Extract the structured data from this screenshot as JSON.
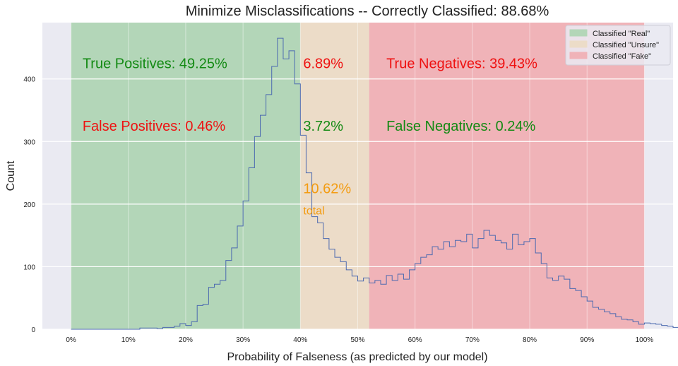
{
  "chart_data": {
    "type": "histogram",
    "title": "Minimize Misclassifications -- Correctly Classified: 88.68%",
    "xlabel": "Probability of Falseness (as predicted by our model)",
    "ylabel": "Count",
    "xlim": [
      -0.05,
      1.05
    ],
    "ylim": [
      0,
      490
    ],
    "x_ticks": [
      0,
      0.1,
      0.2,
      0.3,
      0.4,
      0.5,
      0.6,
      0.7,
      0.8,
      0.9,
      1.0
    ],
    "x_tick_labels": [
      "0%",
      "10%",
      "20%",
      "30%",
      "40%",
      "50%",
      "60%",
      "70%",
      "80%",
      "90%",
      "100%"
    ],
    "y_ticks": [
      0,
      100,
      200,
      300,
      400
    ],
    "y_tick_labels": [
      "0",
      "100",
      "200",
      "300",
      "400"
    ],
    "grid": true,
    "legend_position": "top-right",
    "regions": [
      {
        "label": "Classified \"Real\"",
        "start": 0.0,
        "end": 0.4,
        "color": "#b3d6b8"
      },
      {
        "label": "Classified \"Unsure\"",
        "start": 0.4,
        "end": 0.52,
        "color": "#ecdcc8"
      },
      {
        "label": "Classified \"Fake\"",
        "start": 0.52,
        "end": 1.0,
        "color": "#f0b3b8"
      }
    ],
    "annotations": [
      {
        "text": "True Positives: 49.25%",
        "x": 0.02,
        "y": 425,
        "color": "#138a13",
        "size": "large"
      },
      {
        "text": "False Positives: 0.46%",
        "x": 0.02,
        "y": 325,
        "color": "#ee1111",
        "size": "large"
      },
      {
        "text": "6.89%",
        "x": 0.405,
        "y": 425,
        "color": "#ee1111",
        "size": "large"
      },
      {
        "text": "3.72%",
        "x": 0.405,
        "y": 325,
        "color": "#138a13",
        "size": "large"
      },
      {
        "text": "10.62%",
        "x": 0.405,
        "y": 225,
        "color": "#f39c12",
        "size": "large"
      },
      {
        "text": "total",
        "x": 0.405,
        "y": 190,
        "color": "#f39c12",
        "size": "small"
      },
      {
        "text": "True Negatives: 39.43%",
        "x": 0.55,
        "y": 425,
        "color": "#ee1111",
        "size": "large"
      },
      {
        "text": "False Negatives: 0.24%",
        "x": 0.55,
        "y": 325,
        "color": "#138a13",
        "size": "large"
      }
    ],
    "series": [
      {
        "bin_start": 0.0,
        "bin_width": 0.01,
        "color": "#4c6ab0",
        "values": [
          0,
          0,
          0,
          0,
          0,
          0,
          0,
          0,
          0,
          0,
          0,
          0,
          2,
          2,
          2,
          1,
          3,
          3,
          5,
          9,
          6,
          12,
          38,
          40,
          67,
          72,
          78,
          110,
          130,
          165,
          205,
          258,
          308,
          342,
          375,
          420,
          465,
          432,
          445,
          392,
          310,
          250,
          180,
          170,
          145,
          128,
          115,
          108,
          95,
          85,
          77,
          82,
          74,
          78,
          72,
          86,
          78,
          88,
          80,
          95,
          105,
          115,
          119,
          132,
          128,
          140,
          132,
          142,
          140,
          152,
          130,
          145,
          158,
          150,
          142,
          138,
          128,
          152,
          135,
          140,
          145,
          122,
          105,
          82,
          78,
          85,
          80,
          65,
          62,
          52,
          45,
          35,
          32,
          28,
          25,
          20,
          16,
          15,
          12,
          8,
          10,
          9,
          8,
          6,
          5,
          3,
          3,
          2,
          2,
          1,
          5
        ]
      }
    ]
  }
}
